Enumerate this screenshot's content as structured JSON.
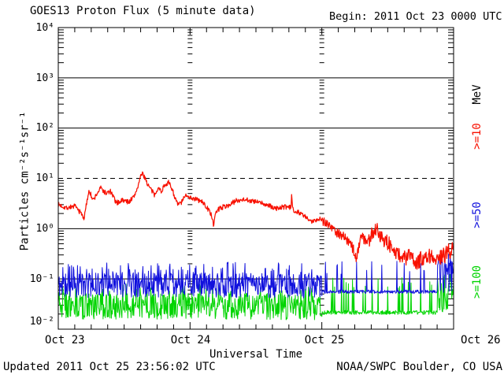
{
  "header": {
    "title": "GOES13 Proton Flux (5 minute data)",
    "begin": "Begin: 2011 Oct 23 0000 UTC"
  },
  "footer": {
    "updated": "Updated 2011 Oct 25 23:56:02 UTC",
    "source": "NOAA/SWPC Boulder, CO USA"
  },
  "axes": {
    "x_title": "Universal Time",
    "y_title": "Particles cm⁻²s⁻¹sr⁻¹"
  },
  "right_labels": [
    {
      "text": "MeV",
      "color": "#000000"
    },
    {
      "text": ">=10",
      "color": "#f81000"
    },
    {
      "text": ">=50",
      "color": "#1010dd"
    },
    {
      "text": ">=100",
      "color": "#00d400"
    }
  ],
  "chart_data": {
    "type": "line",
    "title": "GOES13 Proton Flux (5 minute data)",
    "xlabel": "Universal Time",
    "ylabel": "Particles cm⁻²s⁻¹sr⁻¹",
    "x_units": "hours since 2011 Oct 23 0000 UTC",
    "x_range_hours": [
      0,
      72
    ],
    "x_tick_labels": [
      "Oct 23",
      "Oct 24",
      "Oct 25",
      "Oct 26"
    ],
    "x_major_tick_hours": [
      0,
      24,
      48,
      72
    ],
    "x_minor_tick_step_hours": 3,
    "y_log_range_exponents": [
      -2,
      4
    ],
    "y_tick_labels": [
      "10⁴",
      "10³",
      "10²",
      "10¹",
      "10⁰",
      "10⁻¹",
      "10⁻²"
    ],
    "solid_gridline_exponents": [
      3,
      2,
      0,
      -1
    ],
    "dashed_threshold_value": 10,
    "day_marker_hours": [
      24,
      48
    ],
    "sample_interval_minutes": 5,
    "series": [
      {
        "name": ">=10 MeV",
        "color": "#f81000",
        "width": 1.25,
        "seed": 7,
        "keypoints": [
          [
            0,
            3.0
          ],
          [
            1.5,
            2.6
          ],
          [
            3,
            2.8
          ],
          [
            4.2,
            2.0
          ],
          [
            4.7,
            1.6
          ],
          [
            5.6,
            6.0
          ],
          [
            6.3,
            3.6
          ],
          [
            7.7,
            6.5
          ],
          [
            8.7,
            5.0
          ],
          [
            9.5,
            5.5
          ],
          [
            10.6,
            3.2
          ],
          [
            11.6,
            3.7
          ],
          [
            12.8,
            3.4
          ],
          [
            13.8,
            4.3
          ],
          [
            14.5,
            7.0
          ],
          [
            15.2,
            12.5
          ],
          [
            15.8,
            10.5
          ],
          [
            16.3,
            7.5
          ],
          [
            17.1,
            5.5
          ],
          [
            17.5,
            4.6
          ],
          [
            18.1,
            6.5
          ],
          [
            18.8,
            5.6
          ],
          [
            19.5,
            7.8
          ],
          [
            20.1,
            8.2
          ],
          [
            20.7,
            6.3
          ],
          [
            21.7,
            3.0
          ],
          [
            22.4,
            3.3
          ],
          [
            23.4,
            4.8
          ],
          [
            24,
            4.2
          ],
          [
            25.2,
            3.8
          ],
          [
            26.4,
            3.3
          ],
          [
            27.3,
            2.4
          ],
          [
            27.9,
            1.9
          ],
          [
            28.3,
            1.1
          ],
          [
            28.7,
            2.2
          ],
          [
            29.5,
            2.6
          ],
          [
            31,
            2.9
          ],
          [
            32.4,
            3.6
          ],
          [
            33.9,
            3.9
          ],
          [
            35.3,
            3.5
          ],
          [
            36.7,
            3.3
          ],
          [
            38.2,
            2.9
          ],
          [
            39.6,
            2.5
          ],
          [
            41,
            2.7
          ],
          [
            42.4,
            2.6
          ],
          [
            42.5,
            5.1
          ],
          [
            42.7,
            2.4
          ],
          [
            43.9,
            2.1
          ],
          [
            45.3,
            1.6
          ],
          [
            46,
            1.35
          ],
          [
            46.8,
            1.5
          ],
          [
            47.5,
            1.6
          ],
          [
            48,
            1.5
          ],
          [
            48.9,
            1.3
          ],
          [
            49.6,
            1.1
          ],
          [
            50.3,
            0.95
          ],
          [
            51,
            0.8
          ],
          [
            51.8,
            0.75
          ],
          [
            52.5,
            0.6
          ],
          [
            53.2,
            0.5
          ],
          [
            53.9,
            0.35
          ],
          [
            54.3,
            0.25
          ],
          [
            55.1,
            0.75
          ],
          [
            56.1,
            0.55
          ],
          [
            56.8,
            0.65
          ],
          [
            57.5,
            0.9
          ],
          [
            57.9,
            1.0
          ],
          [
            58.9,
            0.7
          ],
          [
            59.9,
            0.55
          ],
          [
            61.1,
            0.35
          ],
          [
            62.2,
            0.3
          ],
          [
            63.2,
            0.25
          ],
          [
            64,
            0.3
          ],
          [
            65.1,
            0.2
          ],
          [
            66.1,
            0.25
          ],
          [
            67.1,
            0.3
          ],
          [
            68.3,
            0.28
          ],
          [
            69.4,
            0.25
          ],
          [
            70.4,
            0.3
          ],
          [
            71.1,
            0.35
          ],
          [
            72,
            0.4
          ]
        ],
        "noise_segments": [
          [
            0,
            48,
            0.05,
            0.05,
            0,
            0
          ],
          [
            48,
            56,
            0.1,
            0.1,
            0,
            0
          ],
          [
            56,
            72.1,
            0.16,
            0.16,
            0,
            0
          ]
        ]
      },
      {
        "name": ">=50 MeV",
        "color": "#1010dd",
        "width": 1.0,
        "seed": 11,
        "keypoints": [
          [
            0,
            0.06
          ],
          [
            24,
            0.062
          ],
          [
            47,
            0.058
          ],
          [
            48,
            0.055
          ],
          [
            69,
            0.055
          ],
          [
            69.5,
            0.07
          ],
          [
            72,
            0.075
          ]
        ],
        "noise_segments": [
          [
            0,
            48,
            0.15,
            0.33,
            0.13,
            0.55
          ],
          [
            48,
            69,
            0.03,
            0.04,
            0.055,
            0.62
          ],
          [
            69,
            72.1,
            0.15,
            0.5,
            0.2,
            0.66
          ]
        ]
      },
      {
        "name": ">=100 MeV",
        "color": "#00d400",
        "width": 1.0,
        "seed": 13,
        "keypoints": [
          [
            0,
            0.022
          ],
          [
            24,
            0.023
          ],
          [
            47,
            0.022
          ],
          [
            48,
            0.021
          ],
          [
            69,
            0.021
          ],
          [
            69.5,
            0.028
          ],
          [
            72,
            0.03
          ]
        ],
        "noise_segments": [
          [
            0,
            48,
            0.16,
            0.36,
            0.12,
            0.55
          ],
          [
            48,
            69,
            0.03,
            0.05,
            0.055,
            0.72
          ],
          [
            69,
            72.1,
            0.15,
            0.5,
            0.2,
            0.66
          ]
        ]
      }
    ]
  }
}
